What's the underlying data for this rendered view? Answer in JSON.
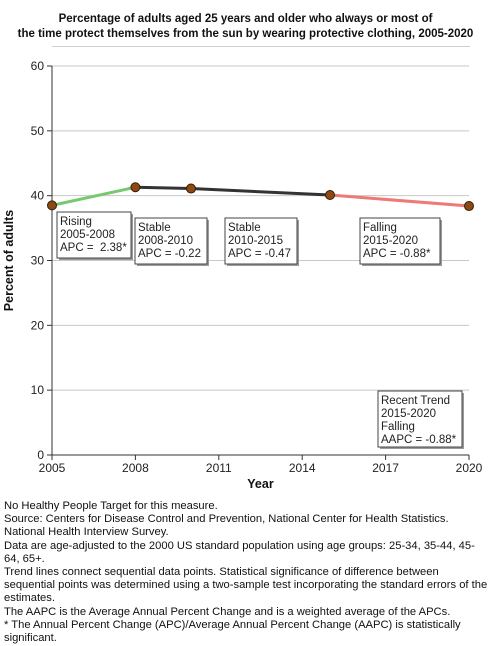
{
  "title_lines": [
    "Percentage of adults aged 25 years and older who always or most of",
    "the time protect themselves from the sun by wearing protective clothing, 2005-2020"
  ],
  "colors": {
    "rising": "#76c96e",
    "stable": "#333333",
    "falling": "#ee7a74",
    "marker": "#8b4a14",
    "grid": "#c8c8c8"
  },
  "chart_data": {
    "type": "line",
    "title": "Percentage of adults aged 25 years and older who always or most of the time protect themselves from the sun by wearing protective clothing, 2005-2020",
    "xlabel": "Year",
    "ylabel": "Percent of adults",
    "xlim": [
      2005,
      2020
    ],
    "ylim": [
      0,
      60
    ],
    "xticks": [
      "2005",
      "2008",
      "2011",
      "2014",
      "2017",
      "2020"
    ],
    "yticks": [
      "0",
      "10",
      "20",
      "30",
      "40",
      "50",
      "60"
    ],
    "grid": true,
    "points": [
      {
        "x": 2005,
        "y": 38.5
      },
      {
        "x": 2008,
        "y": 41.3
      },
      {
        "x": 2010,
        "y": 41.1
      },
      {
        "x": 2015,
        "y": 40.1
      },
      {
        "x": 2020,
        "y": 38.4
      }
    ],
    "segments": [
      {
        "from": 2005,
        "to": 2008,
        "trend": "rising",
        "lines": [
          "Rising",
          "2005-2008",
          "APC =  2.38*"
        ]
      },
      {
        "from": 2008,
        "to": 2010,
        "trend": "stable",
        "lines": [
          "Stable",
          "2008-2010",
          "APC = -0.22"
        ]
      },
      {
        "from": 2010,
        "to": 2015,
        "trend": "stable",
        "lines": [
          "Stable",
          "2010-2015",
          "APC = -0.47"
        ]
      },
      {
        "from": 2015,
        "to": 2020,
        "trend": "falling",
        "lines": [
          "Falling",
          "2015-2020",
          "APC = -0.88*"
        ]
      }
    ],
    "recent_trend": {
      "lines": [
        "Recent Trend",
        "2015-2020",
        "Falling",
        "AAPC = -0.88*"
      ]
    }
  },
  "footnotes": [
    "No Healthy People Target for this measure.",
    "Source: Centers for Disease Control and Prevention, National Center for Health Statistics. National Health Interview Survey.",
    "Data are age-adjusted to the 2000 US standard population using age groups: 25-34, 35-44, 45-64, 65+.",
    "Trend lines connect sequential data points. Statistical significance of difference between sequential points was determined using a two-sample test incorporating the standard errors of the estimates.",
    "The AAPC is the Average Annual Percent Change and is a weighted average of the APCs.",
    "* The Annual Percent Change (APC)/Average Annual Percent Change (AAPC) is statistically significant."
  ]
}
